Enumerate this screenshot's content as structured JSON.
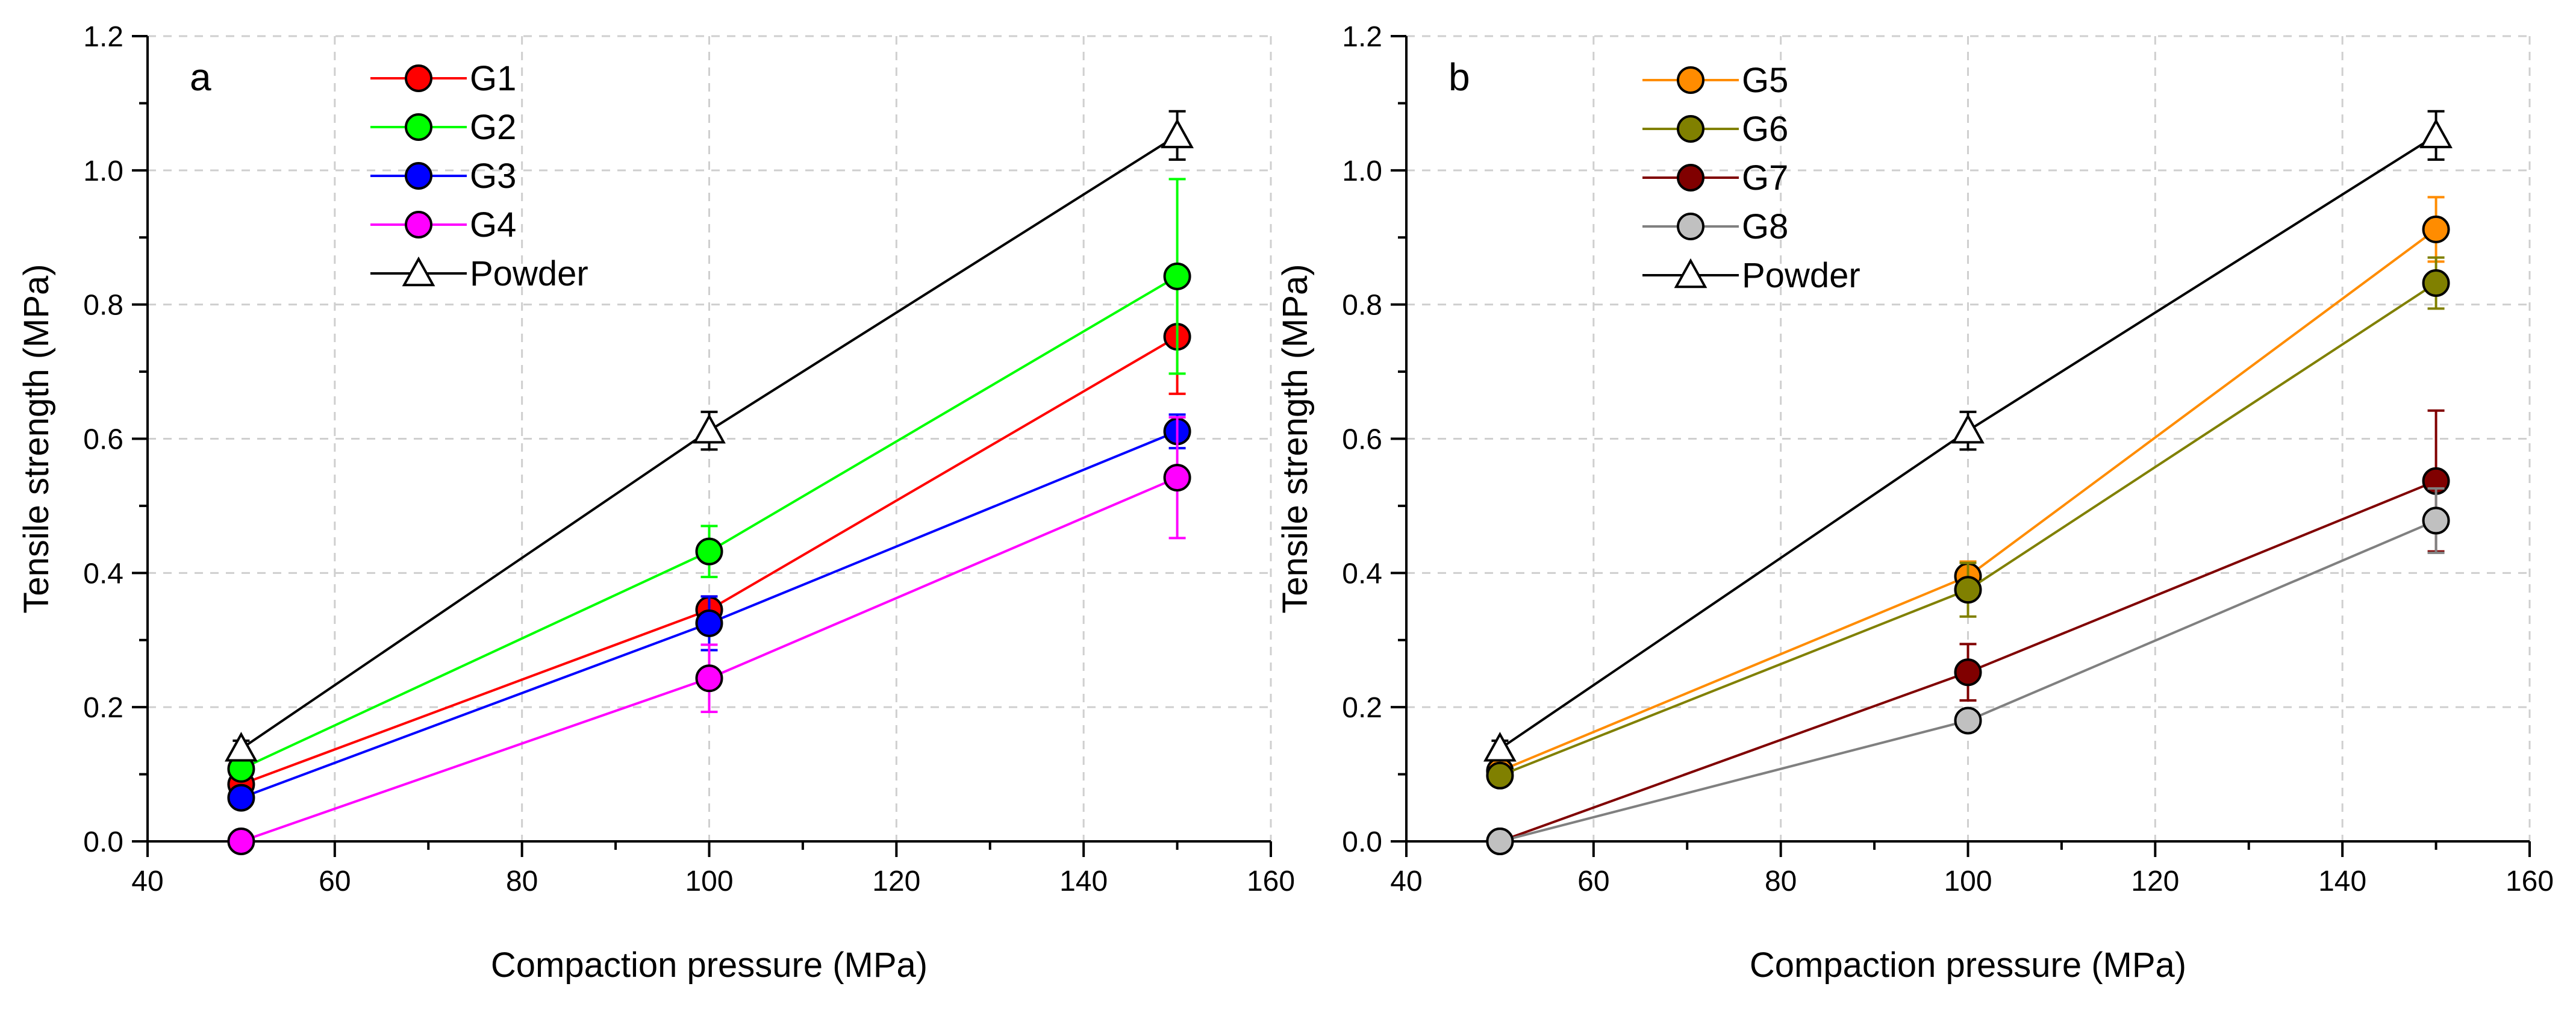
{
  "chart_data": [
    {
      "type": "line",
      "panel_label": "a",
      "xlabel": "Compaction pressure (MPa)",
      "ylabel": "Tensile strength (MPa)",
      "xlim": [
        40,
        160
      ],
      "ylim": [
        0,
        1.2
      ],
      "x_major_ticks": [
        40,
        60,
        80,
        100,
        120,
        140,
        160
      ],
      "x_tick_labels": [
        "40",
        "60",
        "80",
        "100",
        "120",
        "140",
        "160"
      ],
      "y_major_ticks": [
        0.0,
        0.2,
        0.4,
        0.6,
        0.8,
        1.0,
        1.2
      ],
      "y_tick_labels": [
        "0.0",
        "0.2",
        "0.4",
        "0.6",
        "0.8",
        "1.0",
        "1.2"
      ],
      "grid": true,
      "legend_position": "top-left",
      "x": [
        50,
        100,
        150
      ],
      "series": [
        {
          "name": "G1",
          "color": "#ff0000",
          "marker": "circle",
          "values": [
            0.085,
            0.345,
            0.752
          ],
          "errors": [
            0.012,
            0.02,
            0.085
          ]
        },
        {
          "name": "G2",
          "color": "#00ff00",
          "marker": "circle",
          "values": [
            0.108,
            0.432,
            0.842
          ],
          "errors": [
            0.012,
            0.038,
            0.145
          ]
        },
        {
          "name": "G3",
          "color": "#0000ff",
          "marker": "circle",
          "values": [
            0.065,
            0.325,
            0.611
          ],
          "errors": [
            0.008,
            0.04,
            0.025
          ]
        },
        {
          "name": "G4",
          "color": "#ff00ff",
          "marker": "circle",
          "values": [
            0.0,
            0.243,
            0.542
          ],
          "errors": [
            0.0,
            0.05,
            0.09
          ]
        },
        {
          "name": "Powder",
          "color": "#000000",
          "marker": "triangle",
          "values": [
            0.138,
            0.612,
            1.052
          ],
          "errors": [
            0.012,
            0.028,
            0.036
          ]
        }
      ]
    },
    {
      "type": "line",
      "panel_label": "b",
      "xlabel": "Compaction pressure (MPa)",
      "ylabel": "Tensile strength (MPa)",
      "xlim": [
        40,
        160
      ],
      "ylim": [
        0,
        1.2
      ],
      "x_major_ticks": [
        40,
        60,
        80,
        100,
        120,
        140,
        160
      ],
      "x_tick_labels": [
        "40",
        "60",
        "80",
        "100",
        "120",
        "140",
        "160"
      ],
      "y_major_ticks": [
        0.0,
        0.2,
        0.4,
        0.6,
        0.8,
        1.0,
        1.2
      ],
      "y_tick_labels": [
        "0.0",
        "0.2",
        "0.4",
        "0.6",
        "0.8",
        "1.0",
        "1.2"
      ],
      "grid": true,
      "legend_position": "top-left",
      "x": [
        50,
        100,
        150
      ],
      "series": [
        {
          "name": "G5",
          "color": "#ff8c00",
          "marker": "circle",
          "values": [
            0.105,
            0.395,
            0.912
          ],
          "errors": [
            0.012,
            0.022,
            0.048
          ]
        },
        {
          "name": "G6",
          "color": "#808000",
          "marker": "circle",
          "values": [
            0.098,
            0.375,
            0.832
          ],
          "errors": [
            0.01,
            0.04,
            0.038
          ]
        },
        {
          "name": "G7",
          "color": "#800000",
          "marker": "circle",
          "values": [
            0.0,
            0.252,
            0.537
          ],
          "errors": [
            0.0,
            0.042,
            0.105
          ]
        },
        {
          "name": "G8",
          "color": "#c0c0c0",
          "line_color": "#808080",
          "marker": "circle",
          "values": [
            0.0,
            0.18,
            0.478
          ],
          "errors": [
            0.0,
            0.012,
            0.048
          ]
        },
        {
          "name": "Powder",
          "color": "#000000",
          "marker": "triangle",
          "values": [
            0.138,
            0.612,
            1.052
          ],
          "errors": [
            0.012,
            0.028,
            0.036
          ]
        }
      ]
    }
  ]
}
